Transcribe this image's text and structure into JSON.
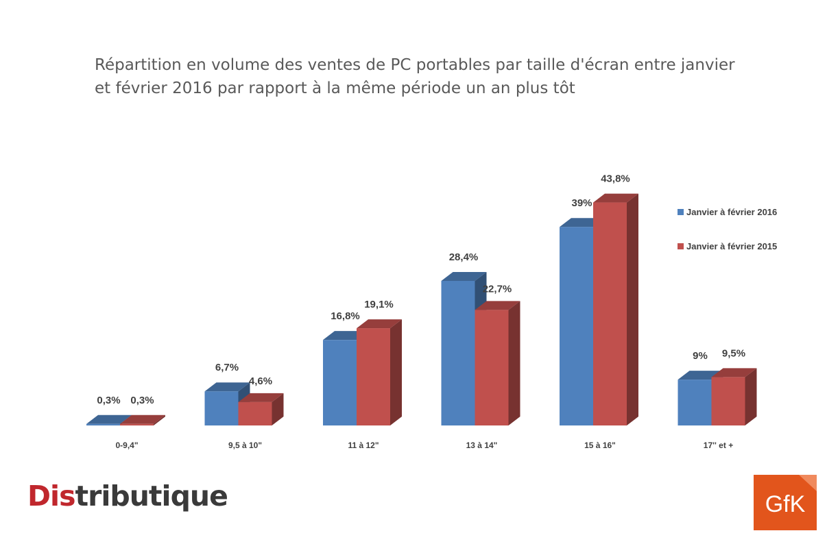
{
  "chart_data": {
    "type": "bar",
    "title": "Répartition en volume des ventes de PC portables par taille d'écran entre janvier et février 2016 par rapport à la même période un an plus tôt",
    "categories": [
      "0-9,4\"",
      "9,5 à 10\"",
      "11 à 12\"",
      "13 à 14\"",
      "15 à 16\"",
      "17'' et +"
    ],
    "series": [
      {
        "name": "Janvier à février 2016",
        "values": [
          0.3,
          6.7,
          16.8,
          28.4,
          39,
          9
        ],
        "labels": [
          "0,3%",
          "6,7%",
          "16,8%",
          "28,4%",
          "39%",
          "9%"
        ],
        "color": "#4f81bd"
      },
      {
        "name": "Janvier à février 2015",
        "values": [
          0.3,
          4.6,
          19.1,
          22.7,
          43.8,
          9.5
        ],
        "labels": [
          "0,3%",
          "4,6%",
          "19,1%",
          "22,7%",
          "43,8%",
          "9,5%"
        ],
        "color": "#c0504d"
      }
    ],
    "ylim": [
      0,
      45
    ],
    "grid": false,
    "legend_position": "right",
    "style": "3d-column"
  },
  "logos": {
    "distributique": {
      "part1": "Dis",
      "part2": "tributique"
    },
    "gfk": "GfK"
  },
  "colors": {
    "title": "#595959",
    "series_2016": "#4f81bd",
    "series_2015": "#c0504d",
    "gfk_bg": "#e2551c"
  }
}
